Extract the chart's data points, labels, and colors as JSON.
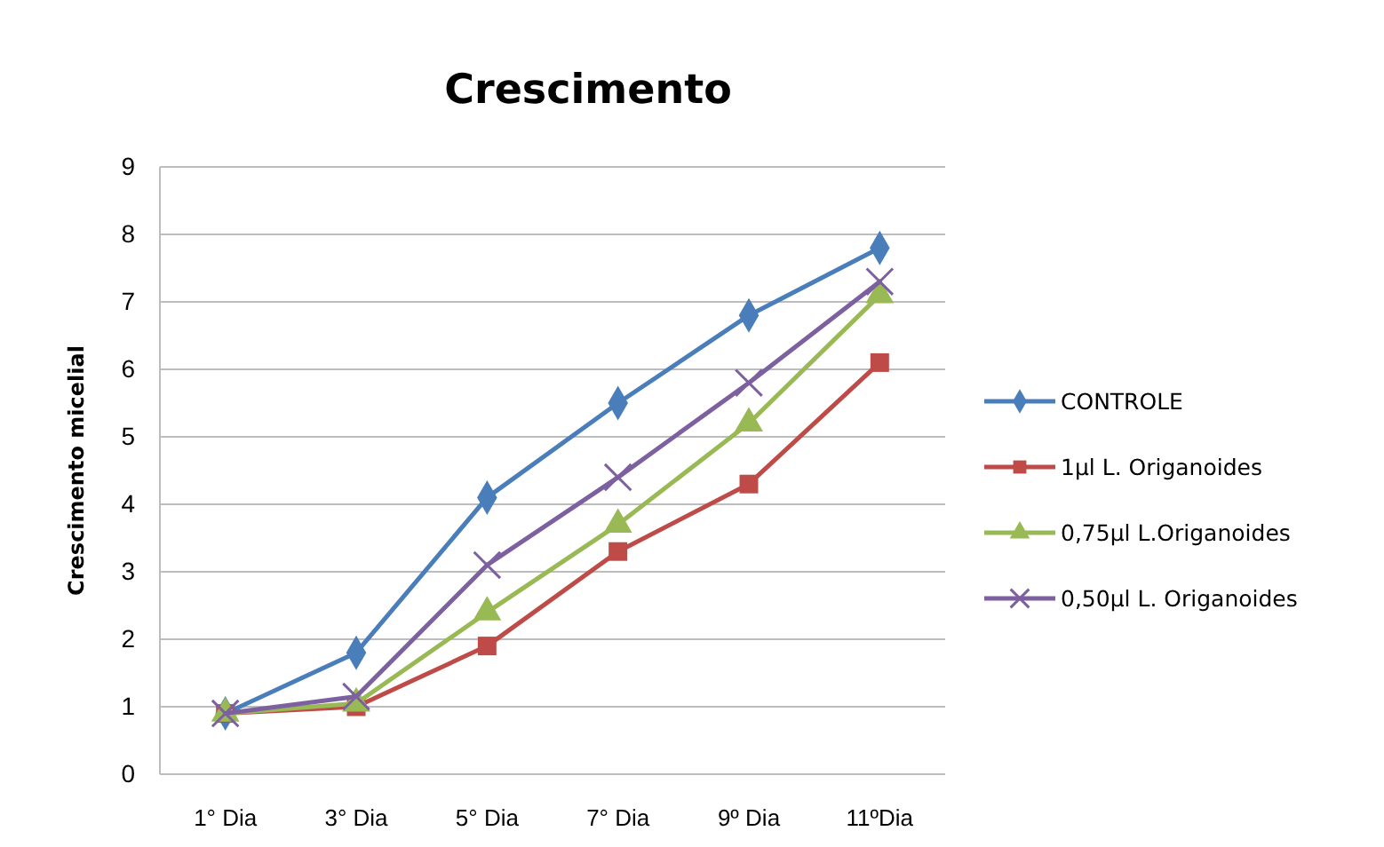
{
  "chart_data": {
    "type": "line",
    "title": "Crescimento",
    "ylabel": "Crescimento micelial",
    "categories": [
      "1° Dia",
      "3° Dia",
      "5° Dia",
      "7° Dia",
      "9º Dia",
      "11ºDia"
    ],
    "series": [
      {
        "name": "CONTROLE",
        "color": "#4a7ebb",
        "marker": "diamond",
        "values": [
          0.9,
          1.8,
          4.1,
          5.5,
          6.8,
          7.8
        ]
      },
      {
        "name": "1µl L. Origanoides",
        "color": "#be4b48",
        "marker": "square",
        "values": [
          0.9,
          1.0,
          1.9,
          3.3,
          4.3,
          6.1
        ]
      },
      {
        "name": "0,75µl L.Origanoides",
        "color": "#98b954",
        "marker": "triangle",
        "values": [
          0.9,
          1.05,
          2.4,
          3.7,
          5.2,
          7.1
        ]
      },
      {
        "name": "0,50µl L. Origanoides",
        "color": "#7d60a0",
        "marker": "cross",
        "values": [
          0.9,
          1.15,
          3.1,
          4.4,
          5.8,
          7.3
        ]
      }
    ],
    "ylim": [
      0,
      9
    ],
    "yticks": [
      0,
      1,
      2,
      3,
      4,
      5,
      6,
      7,
      8,
      9
    ],
    "grid": "y",
    "legend": "right"
  }
}
